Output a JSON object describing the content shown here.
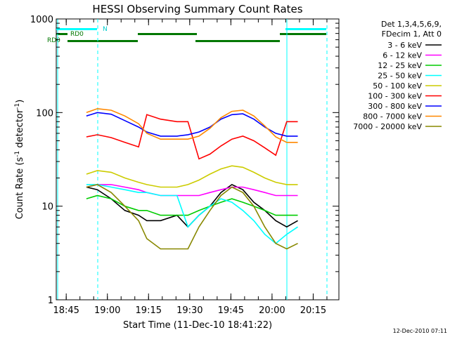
{
  "chart_data": {
    "type": "line",
    "title": "HESSI Observing Summary Count Rates",
    "xlabel": "Start Time (11-Dec-10 18:41:22)",
    "ylabel_main": "Count Rate (s",
    "ylabel_sup1": "-1",
    "ylabel_mid": " detector",
    "ylabel_sup2": "-1",
    "ylabel_end": ")",
    "yscale": "log",
    "ylim": [
      1,
      1000
    ],
    "x_tick_labels": [
      "18:45",
      "19:00",
      "19:15",
      "19:30",
      "19:45",
      "20:00",
      "20:15"
    ],
    "x_tick_minutes": [
      3.633,
      18.633,
      33.633,
      48.633,
      63.633,
      78.633,
      93.633
    ],
    "xlim_minutes": [
      0,
      103
    ],
    "y_tick_labels": [
      "1",
      "10",
      "100",
      "1000"
    ],
    "y_tick_values": [
      1,
      10,
      100,
      1000
    ],
    "grid": false,
    "legend_header": [
      "Det 1,3,4,5,6,9,",
      "FDecim 1, Att 0"
    ],
    "series": [
      {
        "name": "3 - 6 keV",
        "color": "#000000",
        "x": [
          11,
          15,
          20,
          25,
          30,
          33,
          38,
          44,
          48,
          52,
          56,
          60,
          64,
          68,
          72,
          76,
          80,
          84,
          88
        ],
        "y": [
          16,
          15,
          12,
          9,
          8,
          7,
          7,
          8,
          6,
          8,
          10,
          14,
          17,
          15,
          11,
          9,
          7,
          6,
          7
        ]
      },
      {
        "name": "6 - 12 keV",
        "color": "#ff00ff",
        "x": [
          11,
          15,
          20,
          25,
          30,
          33,
          38,
          44,
          48,
          52,
          56,
          60,
          64,
          68,
          72,
          76,
          80,
          84,
          88
        ],
        "y": [
          16,
          17,
          17,
          16,
          15,
          14,
          13,
          13,
          13,
          13,
          14,
          15,
          16,
          16,
          15,
          14,
          13,
          13,
          13
        ]
      },
      {
        "name": "12 - 25 keV",
        "color": "#00cc00",
        "x": [
          11,
          15,
          20,
          25,
          30,
          33,
          38,
          44,
          48,
          52,
          56,
          60,
          64,
          68,
          72,
          76,
          80,
          84,
          88
        ],
        "y": [
          12,
          13,
          12,
          10,
          9,
          9,
          8,
          8,
          8,
          9,
          10,
          11,
          12,
          11,
          10,
          9,
          8,
          8,
          8
        ]
      },
      {
        "name": "25 - 50 keV",
        "color": "#00ffff",
        "x": [
          11,
          15,
          20,
          25,
          30,
          33,
          38,
          44,
          48,
          52,
          56,
          60,
          64,
          68,
          72,
          76,
          80,
          84,
          88
        ],
        "y": [
          17,
          17,
          16,
          15,
          14,
          14,
          13,
          13,
          6,
          8,
          10,
          12,
          11,
          9,
          7,
          5,
          4,
          5,
          6
        ]
      },
      {
        "name": "50 - 100 keV",
        "color": "#cccc00",
        "x": [
          11,
          15,
          20,
          25,
          30,
          33,
          38,
          44,
          48,
          52,
          56,
          60,
          64,
          68,
          72,
          76,
          80,
          84,
          88
        ],
        "y": [
          22,
          24,
          23,
          20,
          18,
          17,
          16,
          16,
          17,
          19,
          22,
          25,
          27,
          26,
          23,
          20,
          18,
          17,
          17
        ]
      },
      {
        "name": "100 - 300 keV",
        "color": "#ff0000",
        "x": [
          11,
          15,
          20,
          25,
          30,
          33,
          38,
          44,
          48,
          52,
          56,
          60,
          64,
          68,
          72,
          76,
          80,
          84,
          88
        ],
        "y": [
          55,
          58,
          54,
          48,
          43,
          95,
          85,
          80,
          80,
          32,
          36,
          44,
          52,
          56,
          50,
          42,
          35,
          80,
          80
        ]
      },
      {
        "name": "300 - 800 keV",
        "color": "#0000ff",
        "x": [
          11,
          15,
          20,
          25,
          30,
          33,
          38,
          44,
          48,
          52,
          56,
          60,
          64,
          68,
          72,
          76,
          80,
          84,
          88
        ],
        "y": [
          92,
          100,
          96,
          82,
          70,
          62,
          56,
          56,
          58,
          62,
          70,
          85,
          95,
          97,
          85,
          70,
          60,
          56,
          56
        ]
      },
      {
        "name": "800 - 7000 keV",
        "color": "#ff8800",
        "x": [
          11,
          15,
          20,
          25,
          30,
          33,
          38,
          44,
          48,
          52,
          56,
          60,
          64,
          68,
          72,
          76,
          80,
          84,
          88
        ],
        "y": [
          100,
          110,
          106,
          92,
          76,
          60,
          52,
          52,
          52,
          56,
          68,
          88,
          103,
          106,
          92,
          72,
          55,
          48,
          48
        ]
      },
      {
        "name": "7000 - 20000 keV",
        "color": "#888800",
        "x": [
          11,
          15,
          20,
          25,
          30,
          33,
          38,
          44,
          48,
          52,
          56,
          60,
          64,
          68,
          72,
          76,
          80,
          84,
          88
        ],
        "y": [
          16,
          17,
          14,
          10,
          7,
          4.5,
          3.5,
          3.5,
          3.5,
          6,
          9,
          13,
          16,
          14,
          10,
          6,
          4,
          3.5,
          4
        ]
      }
    ],
    "flag_labels": [
      "N",
      "RD0",
      "RD0"
    ],
    "timestamp": "12-Dec-2010 07:11"
  }
}
